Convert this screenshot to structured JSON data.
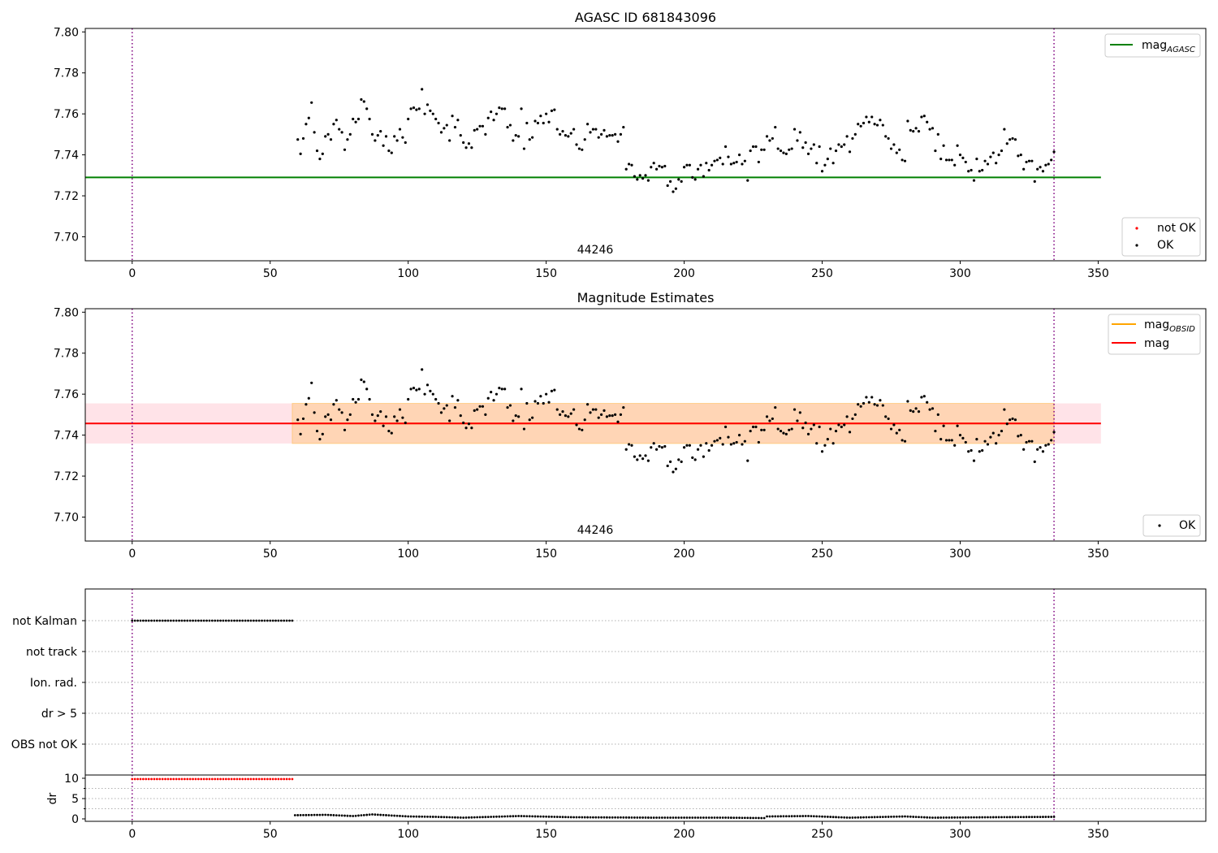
{
  "chart_data": [
    {
      "type": "scatter",
      "title": "AGASC ID 681843096",
      "xlim": [
        -17,
        389
      ],
      "ylim": [
        7.6883,
        7.8017
      ],
      "xticks": [
        0,
        50,
        100,
        150,
        200,
        250,
        300,
        350
      ],
      "yticks": [
        7.7,
        7.72,
        7.74,
        7.76,
        7.78,
        7.8
      ],
      "ytick_labels": [
        "7.70",
        "7.72",
        "7.74",
        "7.76",
        "7.78",
        "7.80"
      ],
      "annotation": "44246",
      "annotation_x": 167,
      "vlines": [
        0,
        334
      ],
      "hline": {
        "name": "mag_AGASC",
        "y": 7.729,
        "x_range": [
          -17,
          351
        ],
        "color": "#008000"
      },
      "legend_top": {
        "position": "upper right",
        "entries": [
          {
            "label": "mag",
            "sub": "AGASC",
            "color": "#008000",
            "kind": "line"
          }
        ]
      },
      "legend_bottom": {
        "position": "lower right",
        "entries": [
          {
            "label": "not OK",
            "color": "#ff0000",
            "kind": "dot"
          },
          {
            "label": "OK",
            "color": "#000000",
            "kind": "dot"
          }
        ]
      },
      "series": [
        {
          "name": "OK",
          "color": "#000000",
          "points_ref": "mag_points"
        }
      ]
    },
    {
      "type": "scatter",
      "title": "Magnitude Estimates",
      "xlim": [
        -17,
        389
      ],
      "ylim": [
        7.6883,
        7.8017
      ],
      "xticks": [
        0,
        50,
        100,
        150,
        200,
        250,
        300,
        350
      ],
      "yticks": [
        7.7,
        7.72,
        7.74,
        7.76,
        7.78,
        7.8
      ],
      "ytick_labels": [
        "7.70",
        "7.72",
        "7.74",
        "7.76",
        "7.78",
        "7.80"
      ],
      "annotation": "44246",
      "annotation_x": 167,
      "vlines": [
        0,
        334
      ],
      "mag_line": {
        "y": 7.7457,
        "band": [
          7.7359,
          7.7555
        ],
        "x_range": [
          -17,
          351
        ],
        "color": "#ff0000",
        "band_color": "#ffc0cb"
      },
      "mag_obsid": {
        "y": 7.7457,
        "band": [
          7.7359,
          7.7555
        ],
        "x_range": [
          58,
          334
        ],
        "color": "#ffa500"
      },
      "legend_top": {
        "position": "upper right",
        "entries": [
          {
            "label": "mag",
            "sub": "OBSID",
            "color": "#ffa500",
            "kind": "line"
          },
          {
            "label": "mag",
            "sub": "",
            "color": "#ff0000",
            "kind": "line"
          }
        ]
      },
      "legend_bottom": {
        "position": "lower right",
        "entries": [
          {
            "label": "OK",
            "color": "#000000",
            "kind": "dot"
          }
        ]
      },
      "series": [
        {
          "name": "OK",
          "color": "#000000",
          "points_ref": "mag_points"
        }
      ]
    },
    {
      "type": "scatter",
      "xlim": [
        -17,
        389
      ],
      "flags": [
        "not Kalman",
        "not track",
        "Ion. rad.",
        "dr > 5",
        "OBS not OK"
      ],
      "vlines": [
        0,
        334
      ],
      "not_kalman_x_range": [
        0,
        58
      ],
      "flag_step": 1
    },
    {
      "type": "scatter",
      "xlim": [
        -17,
        389
      ],
      "xticks": [
        0,
        50,
        100,
        150,
        200,
        250,
        300,
        350
      ],
      "ylim": [
        -0.6,
        10.8
      ],
      "yticks": [
        0,
        5,
        10
      ],
      "ylabel": "dr",
      "vlines": [
        0,
        334
      ],
      "high_dr": {
        "value": 9.8,
        "x_range": [
          0,
          58
        ],
        "color": "#ff0000"
      },
      "low_dr": {
        "x_range": [
          59,
          334
        ],
        "wave": [
          [
            59,
            0.9
          ],
          [
            70,
            1.0
          ],
          [
            80,
            0.7
          ],
          [
            87,
            1.1
          ],
          [
            100,
            0.6
          ],
          [
            110,
            0.5
          ],
          [
            120,
            0.3
          ],
          [
            140,
            0.7
          ],
          [
            160,
            0.4
          ],
          [
            190,
            0.3
          ],
          [
            215,
            0.3
          ],
          [
            229,
            0.2
          ],
          [
            230,
            0.6
          ],
          [
            245,
            0.7
          ],
          [
            260,
            0.3
          ],
          [
            280,
            0.6
          ],
          [
            290,
            0.3
          ],
          [
            310,
            0.4
          ],
          [
            334,
            0.5
          ]
        ]
      }
    }
  ],
  "mag_points": [
    [
      60,
      7.7475
    ],
    [
      61,
      7.7405
    ],
    [
      62,
      7.748
    ],
    [
      63,
      7.755
    ],
    [
      64,
      7.758
    ],
    [
      65,
      7.7655
    ],
    [
      66,
      7.751
    ],
    [
      67,
      7.742
    ],
    [
      68,
      7.738
    ],
    [
      69,
      7.7405
    ],
    [
      70,
      7.749
    ],
    [
      71,
      7.75
    ],
    [
      72,
      7.7475
    ],
    [
      73,
      7.755
    ],
    [
      74,
      7.757
    ],
    [
      75,
      7.7525
    ],
    [
      76,
      7.751
    ],
    [
      77,
      7.7425
    ],
    [
      78,
      7.7475
    ],
    [
      79,
      7.75
    ],
    [
      80,
      7.7575
    ],
    [
      81,
      7.756
    ],
    [
      82,
      7.7575
    ],
    [
      83,
      7.767
    ],
    [
      84,
      7.766
    ],
    [
      85,
      7.7625
    ],
    [
      86,
      7.7575
    ],
    [
      87,
      7.75
    ],
    [
      88,
      7.747
    ],
    [
      89,
      7.7495
    ],
    [
      90,
      7.7515
    ],
    [
      91,
      7.7445
    ],
    [
      92,
      7.749
    ],
    [
      93,
      7.742
    ],
    [
      94,
      7.741
    ],
    [
      95,
      7.749
    ],
    [
      96,
      7.747
    ],
    [
      97,
      7.7525
    ],
    [
      98,
      7.7485
    ],
    [
      99,
      7.746
    ],
    [
      100,
      7.7575
    ],
    [
      101,
      7.7625
    ],
    [
      102,
      7.763
    ],
    [
      103,
      7.762
    ],
    [
      104,
      7.7625
    ],
    [
      105,
      7.772
    ],
    [
      106,
      7.76
    ],
    [
      107,
      7.7645
    ],
    [
      108,
      7.7615
    ],
    [
      109,
      7.76
    ],
    [
      110,
      7.7575
    ],
    [
      111,
      7.7555
    ],
    [
      112,
      7.751
    ],
    [
      113,
      7.753
    ],
    [
      114,
      7.7545
    ],
    [
      115,
      7.747
    ],
    [
      116,
      7.759
    ],
    [
      117,
      7.7535
    ],
    [
      118,
      7.757
    ],
    [
      119,
      7.7495
    ],
    [
      120,
      7.746
    ],
    [
      121,
      7.7435
    ],
    [
      122,
      7.7455
    ],
    [
      123,
      7.7435
    ],
    [
      124,
      7.752
    ],
    [
      125,
      7.7525
    ],
    [
      126,
      7.754
    ],
    [
      127,
      7.754
    ],
    [
      128,
      7.75
    ],
    [
      129,
      7.758
    ],
    [
      130,
      7.761
    ],
    [
      131,
      7.757
    ],
    [
      132,
      7.76
    ],
    [
      133,
      7.763
    ],
    [
      134,
      7.7625
    ],
    [
      135,
      7.7625
    ],
    [
      136,
      7.7535
    ],
    [
      137,
      7.7545
    ],
    [
      138,
      7.747
    ],
    [
      139,
      7.7495
    ],
    [
      140,
      7.749
    ],
    [
      141,
      7.7625
    ],
    [
      142,
      7.743
    ],
    [
      143,
      7.7555
    ],
    [
      144,
      7.7475
    ],
    [
      145,
      7.7485
    ],
    [
      146,
      7.7565
    ],
    [
      147,
      7.7555
    ],
    [
      148,
      7.759
    ],
    [
      149,
      7.7555
    ],
    [
      150,
      7.76
    ],
    [
      151,
      7.756
    ],
    [
      152,
      7.7615
    ],
    [
      153,
      7.762
    ],
    [
      154,
      7.7525
    ],
    [
      155,
      7.75
    ],
    [
      156,
      7.7515
    ],
    [
      157,
      7.7495
    ],
    [
      158,
      7.749
    ],
    [
      159,
      7.7505
    ],
    [
      160,
      7.7525
    ],
    [
      161,
      7.745
    ],
    [
      162,
      7.743
    ],
    [
      163,
      7.7425
    ],
    [
      164,
      7.7475
    ],
    [
      165,
      7.755
    ],
    [
      166,
      7.751
    ],
    [
      167,
      7.7525
    ],
    [
      168,
      7.7525
    ],
    [
      169,
      7.7485
    ],
    [
      170,
      7.75
    ],
    [
      171,
      7.752
    ],
    [
      172,
      7.749
    ],
    [
      173,
      7.7495
    ],
    [
      174,
      7.7495
    ],
    [
      175,
      7.75
    ],
    [
      176,
      7.7465
    ],
    [
      177,
      7.75
    ],
    [
      178,
      7.7535
    ],
    [
      179,
      7.733
    ],
    [
      180,
      7.7355
    ],
    [
      181,
      7.735
    ],
    [
      182,
      7.7295
    ],
    [
      183,
      7.728
    ],
    [
      184,
      7.73
    ],
    [
      185,
      7.7285
    ],
    [
      186,
      7.73
    ],
    [
      187,
      7.7275
    ],
    [
      188,
      7.734
    ],
    [
      189,
      7.736
    ],
    [
      190,
      7.733
    ],
    [
      191,
      7.7345
    ],
    [
      192,
      7.734
    ],
    [
      193,
      7.7345
    ],
    [
      194,
      7.725
    ],
    [
      195,
      7.727
    ],
    [
      196,
      7.722
    ],
    [
      197,
      7.7235
    ],
    [
      198,
      7.728
    ],
    [
      199,
      7.727
    ],
    [
      200,
      7.734
    ],
    [
      201,
      7.735
    ],
    [
      202,
      7.735
    ],
    [
      203,
      7.729
    ],
    [
      204,
      7.728
    ],
    [
      205,
      7.733
    ],
    [
      206,
      7.735
    ],
    [
      207,
      7.7295
    ],
    [
      208,
      7.736
    ],
    [
      209,
      7.7325
    ],
    [
      210,
      7.735
    ],
    [
      211,
      7.737
    ],
    [
      212,
      7.7375
    ],
    [
      213,
      7.7385
    ],
    [
      214,
      7.7355
    ],
    [
      215,
      7.744
    ],
    [
      216,
      7.739
    ],
    [
      217,
      7.7355
    ],
    [
      218,
      7.736
    ],
    [
      219,
      7.7365
    ],
    [
      220,
      7.74
    ],
    [
      221,
      7.7355
    ],
    [
      222,
      7.737
    ],
    [
      223,
      7.7275
    ],
    [
      224,
      7.742
    ],
    [
      225,
      7.744
    ],
    [
      226,
      7.744
    ],
    [
      227,
      7.7365
    ],
    [
      228,
      7.7425
    ],
    [
      229,
      7.7425
    ],
    [
      230,
      7.749
    ],
    [
      231,
      7.747
    ],
    [
      232,
      7.748
    ],
    [
      233,
      7.7535
    ],
    [
      234,
      7.743
    ],
    [
      235,
      7.742
    ],
    [
      236,
      7.741
    ],
    [
      237,
      7.7405
    ],
    [
      238,
      7.7425
    ],
    [
      239,
      7.743
    ],
    [
      240,
      7.7525
    ],
    [
      241,
      7.747
    ],
    [
      242,
      7.751
    ],
    [
      243,
      7.7435
    ],
    [
      244,
      7.746
    ],
    [
      245,
      7.7405
    ],
    [
      246,
      7.743
    ],
    [
      247,
      7.745
    ],
    [
      248,
      7.736
    ],
    [
      249,
      7.744
    ],
    [
      250,
      7.732
    ],
    [
      251,
      7.735
    ],
    [
      252,
      7.738
    ],
    [
      253,
      7.743
    ],
    [
      254,
      7.736
    ],
    [
      255,
      7.742
    ],
    [
      256,
      7.745
    ],
    [
      257,
      7.744
    ],
    [
      258,
      7.745
    ],
    [
      259,
      7.749
    ],
    [
      260,
      7.7415
    ],
    [
      261,
      7.748
    ],
    [
      262,
      7.75
    ],
    [
      263,
      7.755
    ],
    [
      264,
      7.754
    ],
    [
      265,
      7.7555
    ],
    [
      266,
      7.7585
    ],
    [
      267,
      7.756
    ],
    [
      268,
      7.7585
    ],
    [
      269,
      7.755
    ],
    [
      270,
      7.7545
    ],
    [
      271,
      7.757
    ],
    [
      272,
      7.7545
    ],
    [
      273,
      7.749
    ],
    [
      274,
      7.748
    ],
    [
      275,
      7.743
    ],
    [
      276,
      7.745
    ],
    [
      277,
      7.741
    ],
    [
      278,
      7.7425
    ],
    [
      279,
      7.7375
    ],
    [
      280,
      7.737
    ],
    [
      281,
      7.7565
    ],
    [
      282,
      7.752
    ],
    [
      283,
      7.7515
    ],
    [
      284,
      7.753
    ],
    [
      285,
      7.7515
    ],
    [
      286,
      7.7585
    ],
    [
      287,
      7.759
    ],
    [
      288,
      7.756
    ],
    [
      289,
      7.7525
    ],
    [
      290,
      7.753
    ],
    [
      291,
      7.742
    ],
    [
      292,
      7.75
    ],
    [
      293,
      7.738
    ],
    [
      294,
      7.7445
    ],
    [
      295,
      7.7375
    ],
    [
      296,
      7.7375
    ],
    [
      297,
      7.7375
    ],
    [
      298,
      7.735
    ],
    [
      299,
      7.7445
    ],
    [
      300,
      7.74
    ],
    [
      301,
      7.7385
    ],
    [
      302,
      7.7365
    ],
    [
      303,
      7.732
    ],
    [
      304,
      7.7325
    ],
    [
      305,
      7.7275
    ],
    [
      306,
      7.738
    ],
    [
      307,
      7.732
    ],
    [
      308,
      7.7325
    ],
    [
      309,
      7.737
    ],
    [
      310,
      7.7355
    ],
    [
      311,
      7.739
    ],
    [
      312,
      7.741
    ],
    [
      313,
      7.736
    ],
    [
      314,
      7.74
    ],
    [
      315,
      7.742
    ],
    [
      316,
      7.7525
    ],
    [
      317,
      7.7455
    ],
    [
      318,
      7.7475
    ],
    [
      319,
      7.748
    ],
    [
      320,
      7.7475
    ],
    [
      321,
      7.7395
    ],
    [
      322,
      7.74
    ],
    [
      323,
      7.733
    ],
    [
      324,
      7.7365
    ],
    [
      325,
      7.737
    ],
    [
      326,
      7.737
    ],
    [
      327,
      7.727
    ],
    [
      328,
      7.733
    ],
    [
      329,
      7.734
    ],
    [
      330,
      7.732
    ],
    [
      331,
      7.735
    ],
    [
      332,
      7.7355
    ],
    [
      333,
      7.7375
    ],
    [
      334,
      7.7415
    ]
  ]
}
